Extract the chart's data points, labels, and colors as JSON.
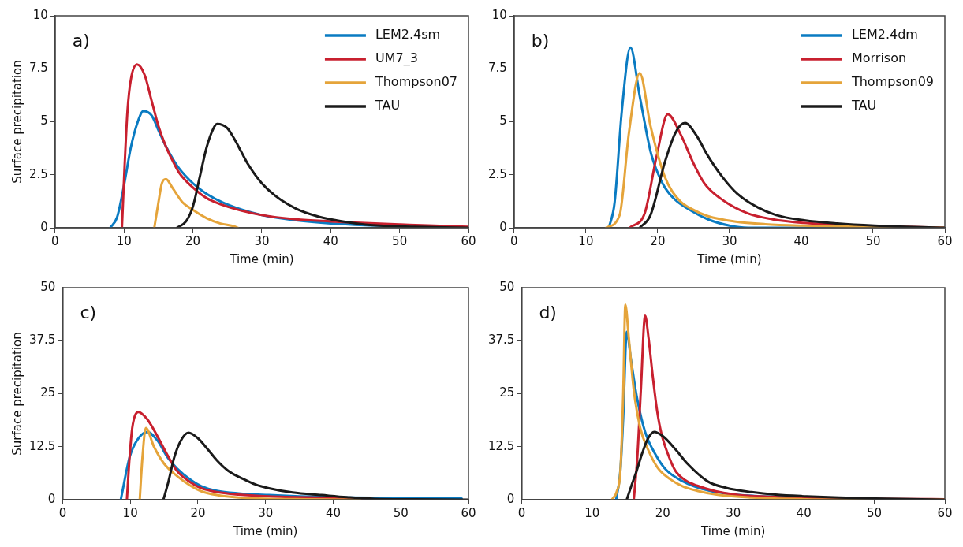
{
  "chart_data": [
    {
      "type": "line",
      "title": "a)",
      "xlabel": "Time (min)",
      "ylabel": "Surface precipitation",
      "xlim": [
        0,
        60
      ],
      "xticks": [
        0,
        10,
        20,
        30,
        40,
        50,
        60
      ],
      "ylim": [
        0,
        10
      ],
      "yticks": [
        0,
        2.5,
        5,
        7.5,
        10
      ],
      "legend": "top right",
      "series": [
        {
          "name": "LEM2.4sm",
          "color": "#0a7bc2",
          "x": [
            8,
            9,
            10,
            11,
            12,
            12.8,
            14,
            15,
            16,
            17,
            18,
            20,
            22,
            25,
            30,
            35,
            40,
            45,
            50
          ],
          "values": [
            0,
            0.5,
            2,
            3.8,
            5,
            5.5,
            5.3,
            4.6,
            3.9,
            3.3,
            2.8,
            2.1,
            1.6,
            1.1,
            0.6,
            0.35,
            0.2,
            0.12,
            0.08
          ]
        },
        {
          "name": "UM7_3",
          "color": "#c8202f",
          "x": [
            9.7,
            10.1,
            10.5,
            11,
            11.9,
            13,
            14,
            15,
            16,
            17,
            18,
            20,
            22,
            25,
            30,
            35,
            40,
            45,
            50,
            55,
            60
          ],
          "values": [
            0,
            3,
            5.5,
            7,
            7.7,
            7.2,
            6,
            4.8,
            3.9,
            3.2,
            2.6,
            1.9,
            1.4,
            1,
            0.6,
            0.4,
            0.3,
            0.22,
            0.16,
            0.1,
            0.05
          ]
        },
        {
          "name": "Thompson07",
          "color": "#e5a43a",
          "x": [
            14.4,
            15,
            15.5,
            16.1,
            17,
            18.5,
            20,
            22,
            24,
            26,
            26.5
          ],
          "values": [
            0,
            1.2,
            2.1,
            2.3,
            1.9,
            1.2,
            0.85,
            0.45,
            0.2,
            0.07,
            0
          ]
        },
        {
          "name": "TAU",
          "color": "#1a1a1a",
          "x": [
            17.7,
            19,
            20,
            21,
            22,
            23,
            23.5,
            25,
            26,
            27,
            28,
            30,
            32,
            35,
            38,
            40,
            45,
            50,
            55,
            60
          ],
          "values": [
            0,
            0.3,
            1,
            2.4,
            3.8,
            4.7,
            4.9,
            4.7,
            4.2,
            3.6,
            3,
            2.1,
            1.5,
            0.9,
            0.55,
            0.4,
            0.15,
            0.07,
            0.03,
            0
          ]
        }
      ]
    },
    {
      "type": "line",
      "title": "b)",
      "xlabel": "Time (min)",
      "xlim": [
        0,
        60
      ],
      "xticks": [
        0,
        10,
        20,
        30,
        40,
        50,
        60
      ],
      "ylim": [
        0,
        10
      ],
      "yticks": [
        0,
        2.5,
        5,
        7.5,
        10
      ],
      "legend": "top right",
      "series": [
        {
          "name": "LEM2.4dm",
          "color": "#0a7bc2",
          "x": [
            13.2,
            14,
            15,
            16.2,
            17.5,
            19,
            19.8,
            21,
            22.5,
            24.1,
            27,
            30,
            32.6,
            40,
            50,
            60
          ],
          "values": [
            0,
            1.2,
            5.5,
            8.5,
            6.2,
            3.6,
            2.76,
            1.9,
            1.3,
            0.92,
            0.4,
            0.1,
            0,
            0,
            0,
            0
          ]
        },
        {
          "name": "Morrison",
          "color": "#c8202f",
          "x": [
            16.1,
            18.2,
            19.8,
            21.4,
            23.2,
            24.9,
            26.5,
            28.8,
            32.6,
            36,
            40.4,
            50,
            60
          ],
          "values": [
            0,
            0.7,
            3.3,
            5.35,
            4.4,
            3.1,
            2.1,
            1.37,
            0.67,
            0.4,
            0.23,
            0.08,
            0
          ]
        },
        {
          "name": "Thompson09",
          "color": "#e5a43a",
          "x": [
            12.8,
            14.7,
            16,
            17.5,
            19,
            21,
            23,
            24.9,
            27,
            30.7,
            35,
            40.4,
            50,
            60
          ],
          "values": [
            0,
            0.6,
            4.5,
            7.3,
            4.8,
            2.4,
            1.3,
            0.86,
            0.55,
            0.3,
            0.17,
            0.1,
            0.04,
            0
          ]
        },
        {
          "name": "TAU",
          "color": "#1a1a1a",
          "x": [
            17.5,
            19,
            21,
            22.5,
            23.8,
            25.5,
            26.8,
            29,
            31.1,
            34,
            36.5,
            40.4,
            45,
            50.2,
            60
          ],
          "values": [
            0,
            0.6,
            3.1,
            4.5,
            4.94,
            4.3,
            3.5,
            2.4,
            1.6,
            0.95,
            0.6,
            0.35,
            0.2,
            0.1,
            0
          ]
        }
      ]
    },
    {
      "type": "line",
      "title": "c)",
      "xlabel": "Time (min)",
      "ylabel": "Surface precipitation",
      "xlim": [
        0,
        60
      ],
      "xticks": [
        0,
        10,
        20,
        30,
        40,
        50,
        60
      ],
      "ylim": [
        0,
        50
      ],
      "yticks": [
        0,
        12.5,
        25,
        37.5,
        50
      ],
      "series": [
        {
          "color": "#0a7bc2",
          "x": [
            8.6,
            9.9,
            11,
            12.5,
            14,
            15.5,
            16.9,
            19,
            20.5,
            22.8,
            26,
            30.5,
            35,
            42.2,
            50,
            59
          ],
          "values": [
            0,
            10,
            14,
            16,
            14,
            10,
            7.4,
            4.6,
            3.2,
            2.1,
            1.5,
            1.1,
            0.8,
            0.5,
            0.4,
            0.3
          ]
        },
        {
          "color": "#c8202f",
          "x": [
            9.5,
            9.9,
            10.3,
            11.2,
            12.5,
            14,
            15.5,
            16.9,
            19,
            20.5,
            22.8,
            26,
            30.5,
            38.3,
            45
          ],
          "values": [
            0,
            10,
            17,
            20.7,
            19,
            15,
            10.5,
            6.8,
            4,
            2.7,
            1.8,
            1.2,
            0.8,
            0.5,
            0.3
          ]
        },
        {
          "color": "#e5a43a",
          "x": [
            11.4,
            11.8,
            12.3,
            13.5,
            15,
            16.9,
            19,
            20.5,
            22.8,
            26,
            30.5,
            36,
            44
          ],
          "values": [
            0,
            10,
            16.9,
            12.5,
            8.5,
            5.6,
            3.2,
            2,
            1.1,
            0.5,
            0.2,
            0.1,
            0
          ]
        },
        {
          "color": "#1a1a1a",
          "x": [
            14.9,
            15.6,
            16.5,
            17.5,
            18.6,
            20,
            21.5,
            22.8,
            24.5,
            26.7,
            28.5,
            30.5,
            34,
            38.3,
            42,
            46.1,
            52,
            60
          ],
          "values": [
            0,
            4,
            10,
            14,
            15.8,
            14.5,
            11.8,
            9.3,
            6.8,
            4.9,
            3.6,
            2.7,
            1.7,
            1.1,
            0.6,
            0.2,
            0.1,
            0
          ]
        }
      ]
    },
    {
      "type": "line",
      "title": "d)",
      "xlabel": "Time (min)",
      "xlim": [
        0,
        60
      ],
      "xticks": [
        0,
        10,
        20,
        30,
        40,
        50,
        60
      ],
      "ylim": [
        0,
        50
      ],
      "yticks": [
        0,
        12.5,
        25,
        37.5,
        50
      ],
      "series": [
        {
          "color": "#0a7bc2",
          "x": [
            13.4,
            14,
            14.4,
            14.9,
            15.5,
            16.3,
            17.5,
            19,
            20.5,
            22.9,
            25.5,
            28.8,
            33,
            40.4
          ],
          "values": [
            0,
            7,
            19.4,
            39.6,
            33,
            24.5,
            16,
            10.6,
            7,
            4.3,
            2.6,
            1.5,
            0.9,
            0.5
          ]
        },
        {
          "color": "#c8202f",
          "x": [
            15.9,
            16.4,
            16.9,
            17.5,
            18,
            18.6,
            19.2,
            19.8,
            20.8,
            21.8,
            23.2,
            24.9,
            27.5,
            30.7,
            35,
            40.4,
            50,
            60
          ],
          "values": [
            0,
            10,
            25.8,
            43.4,
            38,
            28.9,
            21,
            15.7,
            10.5,
            6.8,
            4.6,
            3.3,
            2,
            1.1,
            0.7,
            0.4,
            0.2,
            0.1
          ]
        },
        {
          "color": "#e5a43a",
          "x": [
            12.8,
            13.5,
            14,
            14.4,
            14.7,
            15.2,
            15.9,
            16.8,
            17.9,
            19.3,
            21,
            22.8,
            24.9,
            28,
            32.6,
            40.4,
            50,
            60
          ],
          "values": [
            0,
            2,
            6.8,
            25,
            46,
            38,
            25.8,
            17,
            11.9,
            7.5,
            4.9,
            3.2,
            2.1,
            1.1,
            0.5,
            0.1,
            0,
            0
          ]
        },
        {
          "color": "#1a1a1a",
          "x": [
            14.9,
            15.5,
            16.3,
            17.1,
            17.9,
            18.8,
            20,
            21.8,
            23.5,
            26.4,
            29,
            32.6,
            36,
            40.4,
            45,
            50.2,
            60
          ],
          "values": [
            0,
            3,
            6.8,
            11,
            14.4,
            16,
            15,
            11.9,
            8.5,
            4.3,
            2.8,
            1.8,
            1.2,
            0.8,
            0.5,
            0.3,
            0
          ]
        }
      ]
    }
  ]
}
